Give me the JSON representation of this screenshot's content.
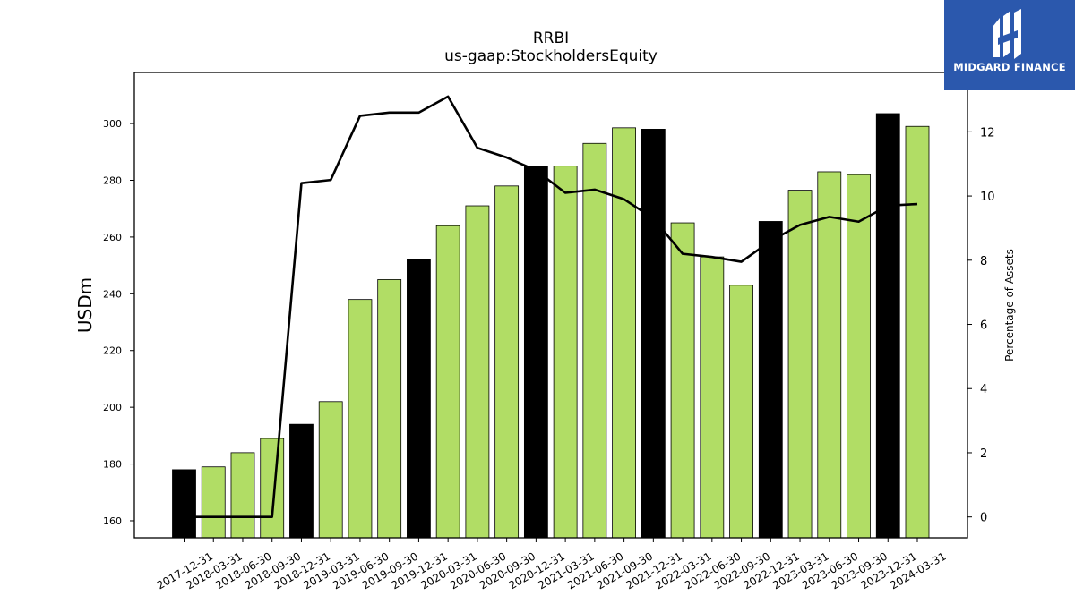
{
  "chart_data": {
    "type": "bar",
    "title": "RRBI",
    "subtitle": "us-gaap:StockholdersEquity",
    "ylabel": "USDm",
    "y2label": "Percentage of Assets",
    "ylim": [
      154,
      318
    ],
    "y2lim": [
      -0.65,
      13.85
    ],
    "yticks": [
      160,
      180,
      200,
      220,
      240,
      260,
      280,
      300
    ],
    "y2ticks": [
      0,
      2,
      4,
      6,
      8,
      10,
      12
    ],
    "categories": [
      "2017-12-31",
      "2018-03-31",
      "2018-06-30",
      "2018-09-30",
      "2018-12-31",
      "2019-03-31",
      "2019-06-30",
      "2019-09-30",
      "2019-12-31",
      "2020-03-31",
      "2020-06-30",
      "2020-09-30",
      "2020-12-31",
      "2021-03-31",
      "2021-06-30",
      "2021-09-30",
      "2021-12-31",
      "2022-03-31",
      "2022-06-30",
      "2022-09-30",
      "2022-12-31",
      "2023-03-31",
      "2023-06-30",
      "2023-09-30",
      "2023-12-31",
      "2024-03-31"
    ],
    "series": [
      {
        "kind": "bar",
        "values": [
          178,
          179,
          184,
          189,
          194,
          202,
          238,
          245,
          252,
          264,
          271,
          278,
          285,
          285,
          293,
          298.5,
          298,
          265,
          253,
          243,
          265.5,
          276.5,
          283,
          282,
          303.5,
          299
        ]
      },
      {
        "kind": "line",
        "axis": "right",
        "values": [
          0.0,
          0.0,
          0.0,
          0.0,
          10.4,
          10.5,
          12.5,
          12.6,
          12.6,
          13.1,
          11.5,
          11.2,
          10.8,
          10.1,
          10.2,
          9.9,
          9.3,
          8.2,
          8.1,
          7.95,
          8.6,
          9.1,
          9.35,
          9.2,
          9.7,
          9.75
        ]
      }
    ],
    "bar_colors": {
      "default": "#b1dd65",
      "year_end": "#000000"
    },
    "year_end_indices": [
      0,
      4,
      8,
      12,
      16,
      20,
      24
    ],
    "line_color": "#000000"
  },
  "logo": {
    "name": "midgard-logo-icon",
    "text": "MIDGARD FINANCE",
    "background": "#2b58ad"
  }
}
